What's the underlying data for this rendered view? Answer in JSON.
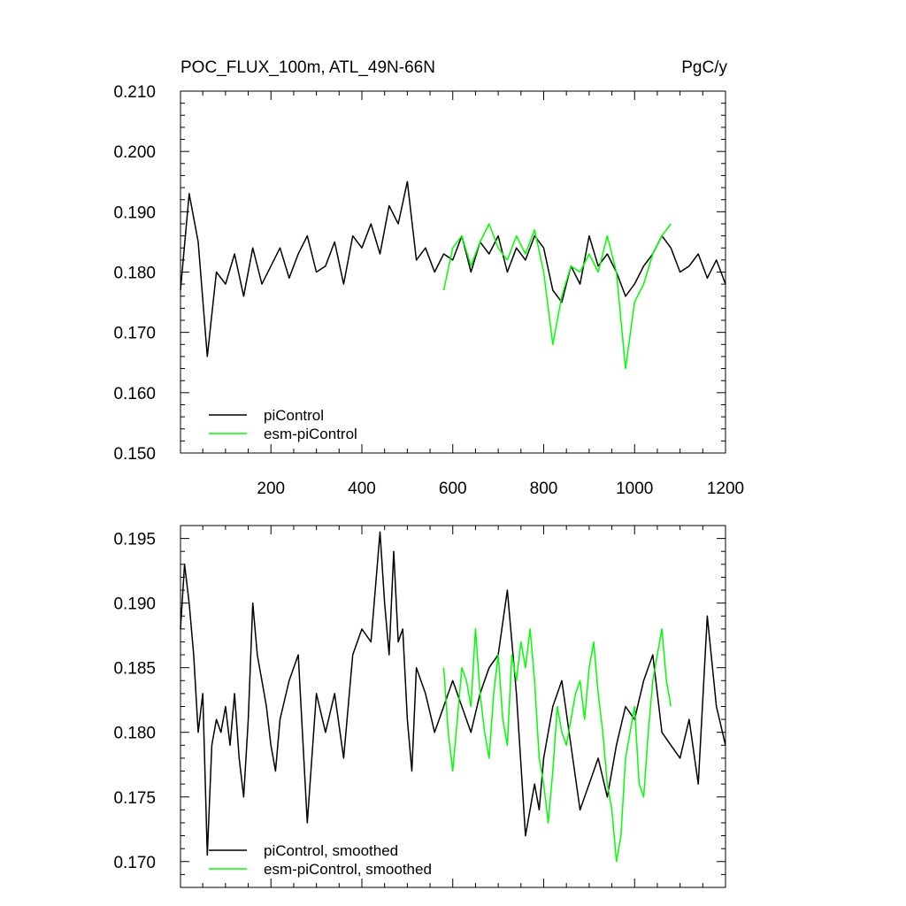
{
  "chart_data": [
    {
      "type": "line",
      "title": "POC_FLUX_100m, ATL_49N-66N",
      "units": "PgC/y",
      "xlim": [
        1,
        1200
      ],
      "ylim": [
        0.15,
        0.21
      ],
      "x_ticks": [
        200,
        400,
        600,
        800,
        1000,
        1200
      ],
      "x_tick_labels": [
        "200",
        "400",
        "600",
        "800",
        "1000",
        "1200"
      ],
      "y_ticks": [
        0.15,
        0.16,
        0.17,
        0.18,
        0.19,
        0.2,
        0.21
      ],
      "y_tick_labels": [
        "0.150",
        "0.160",
        "0.170",
        "0.180",
        "0.190",
        "0.200",
        "0.210"
      ],
      "legend_position": "bottom-left",
      "series": [
        {
          "name": "piControl",
          "color": "#000000",
          "x": [
            1,
            20,
            40,
            60,
            80,
            100,
            120,
            140,
            160,
            180,
            200,
            220,
            240,
            260,
            280,
            300,
            320,
            340,
            360,
            380,
            400,
            420,
            440,
            460,
            480,
            500,
            520,
            540,
            560,
            580,
            600,
            620,
            640,
            660,
            680,
            700,
            720,
            740,
            760,
            780,
            800,
            820,
            840,
            860,
            880,
            900,
            920,
            940,
            960,
            980,
            1000,
            1020,
            1040,
            1060,
            1080,
            1100,
            1120,
            1140,
            1160,
            1180,
            1200
          ],
          "values": [
            0.177,
            0.193,
            0.185,
            0.166,
            0.18,
            0.178,
            0.183,
            0.176,
            0.184,
            0.178,
            0.181,
            0.184,
            0.179,
            0.183,
            0.186,
            0.18,
            0.181,
            0.185,
            0.178,
            0.186,
            0.184,
            0.188,
            0.183,
            0.191,
            0.188,
            0.195,
            0.182,
            0.184,
            0.18,
            0.183,
            0.182,
            0.186,
            0.18,
            0.185,
            0.183,
            0.186,
            0.18,
            0.184,
            0.182,
            0.186,
            0.184,
            0.177,
            0.175,
            0.181,
            0.178,
            0.186,
            0.181,
            0.183,
            0.18,
            0.176,
            0.178,
            0.181,
            0.183,
            0.186,
            0.184,
            0.18,
            0.181,
            0.183,
            0.179,
            0.182,
            0.178
          ]
        },
        {
          "name": "esm-piControl",
          "color": "#00ff00",
          "x": [
            580,
            600,
            620,
            640,
            660,
            680,
            700,
            720,
            740,
            760,
            780,
            800,
            820,
            840,
            860,
            880,
            900,
            920,
            940,
            960,
            980,
            1000,
            1020,
            1040,
            1060,
            1080
          ],
          "values": [
            0.177,
            0.184,
            0.186,
            0.181,
            0.185,
            0.188,
            0.184,
            0.182,
            0.186,
            0.183,
            0.187,
            0.18,
            0.168,
            0.176,
            0.181,
            0.18,
            0.183,
            0.18,
            0.186,
            0.18,
            0.164,
            0.175,
            0.178,
            0.183,
            0.186,
            0.188
          ]
        }
      ]
    },
    {
      "type": "line",
      "title": "",
      "xlim": [
        1,
        1200
      ],
      "ylim": [
        0.168,
        0.196
      ],
      "y_ticks": [
        0.17,
        0.175,
        0.18,
        0.185,
        0.19,
        0.195
      ],
      "y_tick_labels": [
        "0.170",
        "0.175",
        "0.180",
        "0.185",
        "0.190",
        "0.195"
      ],
      "legend_position": "bottom-left",
      "series": [
        {
          "name": "piControl, smoothed",
          "color": "#000000",
          "x": [
            1,
            10,
            20,
            30,
            40,
            50,
            60,
            70,
            80,
            90,
            100,
            110,
            120,
            130,
            140,
            150,
            160,
            170,
            180,
            190,
            200,
            210,
            220,
            240,
            260,
            280,
            300,
            320,
            340,
            360,
            380,
            400,
            420,
            440,
            450,
            460,
            470,
            480,
            490,
            500,
            510,
            520,
            540,
            560,
            580,
            600,
            620,
            640,
            660,
            680,
            700,
            720,
            740,
            760,
            780,
            790,
            800,
            820,
            840,
            860,
            880,
            900,
            920,
            940,
            960,
            980,
            1000,
            1020,
            1040,
            1060,
            1080,
            1100,
            1120,
            1140,
            1160,
            1180,
            1200
          ],
          "values": [
            0.188,
            0.193,
            0.19,
            0.186,
            0.18,
            0.183,
            0.1705,
            0.179,
            0.181,
            0.18,
            0.182,
            0.179,
            0.183,
            0.178,
            0.175,
            0.181,
            0.19,
            0.186,
            0.184,
            0.182,
            0.179,
            0.177,
            0.181,
            0.184,
            0.186,
            0.173,
            0.183,
            0.18,
            0.183,
            0.178,
            0.186,
            0.188,
            0.187,
            0.1955,
            0.19,
            0.186,
            0.194,
            0.187,
            0.188,
            0.181,
            0.177,
            0.185,
            0.183,
            0.18,
            0.182,
            0.184,
            0.182,
            0.18,
            0.183,
            0.185,
            0.186,
            0.191,
            0.183,
            0.172,
            0.176,
            0.174,
            0.178,
            0.182,
            0.184,
            0.179,
            0.174,
            0.176,
            0.178,
            0.175,
            0.179,
            0.182,
            0.181,
            0.184,
            0.186,
            0.18,
            0.179,
            0.178,
            0.181,
            0.176,
            0.189,
            0.182,
            0.179
          ]
        },
        {
          "name": "esm-piControl, smoothed",
          "color": "#00ff00",
          "x": [
            580,
            590,
            600,
            610,
            620,
            630,
            640,
            650,
            660,
            670,
            680,
            690,
            700,
            710,
            720,
            730,
            740,
            750,
            760,
            770,
            780,
            790,
            800,
            810,
            820,
            830,
            840,
            850,
            860,
            870,
            880,
            890,
            900,
            910,
            920,
            930,
            940,
            950,
            960,
            970,
            980,
            990,
            1000,
            1010,
            1020,
            1030,
            1040,
            1050,
            1060,
            1070,
            1080
          ],
          "values": [
            0.185,
            0.18,
            0.177,
            0.181,
            0.185,
            0.184,
            0.182,
            0.188,
            0.183,
            0.18,
            0.178,
            0.183,
            0.186,
            0.181,
            0.179,
            0.186,
            0.184,
            0.187,
            0.185,
            0.188,
            0.184,
            0.178,
            0.176,
            0.173,
            0.177,
            0.182,
            0.18,
            0.179,
            0.181,
            0.183,
            0.184,
            0.181,
            0.185,
            0.187,
            0.183,
            0.18,
            0.176,
            0.174,
            0.17,
            0.172,
            0.178,
            0.18,
            0.182,
            0.176,
            0.175,
            0.18,
            0.184,
            0.186,
            0.188,
            0.184,
            0.182
          ]
        }
      ]
    }
  ]
}
